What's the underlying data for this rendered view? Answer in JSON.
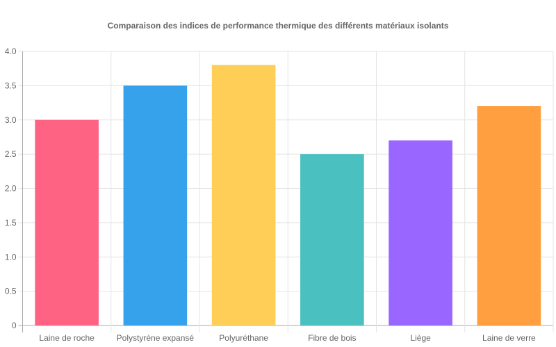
{
  "chart_data": {
    "type": "bar",
    "title": "Comparaison des indices de performance thermique des différents matériaux isolants",
    "categories": [
      "Laine de roche",
      "Polystyrène expansé",
      "Polyuréthane",
      "Fibre de bois",
      "Liège",
      "Laine de verre"
    ],
    "values": [
      3.0,
      3.5,
      3.8,
      2.5,
      2.7,
      3.2
    ],
    "colors": [
      "#ff6384",
      "#36a2eb",
      "#ffce56",
      "#4bc0c0",
      "#9966ff",
      "#ff9f40"
    ],
    "ylim": [
      0,
      4
    ],
    "yticks": [
      "0",
      "0.5",
      "1.0",
      "1.5",
      "2.0",
      "2.5",
      "3.0",
      "3.5",
      "4.0"
    ],
    "xlabel": "",
    "ylabel": "",
    "grid": true,
    "legend": "none"
  }
}
